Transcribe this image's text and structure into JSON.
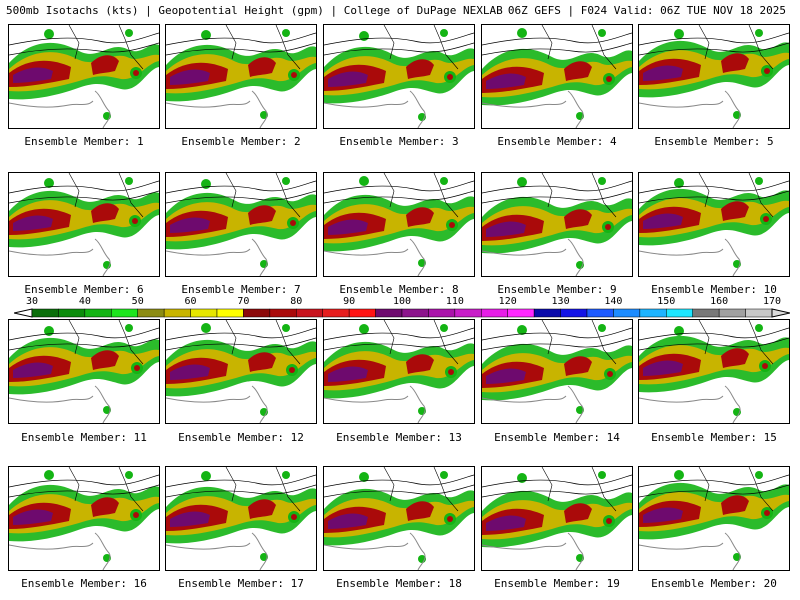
{
  "header": {
    "title": "500mb Isotachs (kts) | Geopotential Height (gpm) | College of DuPage NEXLAB",
    "run_info": "06Z GEFS | F024 Valid: 06Z TUE NOV 18 2025"
  },
  "members": [
    "Ensemble Member: 1",
    "Ensemble Member: 2",
    "Ensemble Member: 3",
    "Ensemble Member: 4",
    "Ensemble Member: 5",
    "Ensemble Member: 6",
    "Ensemble Member: 7",
    "Ensemble Member: 8",
    "Ensemble Member: 9",
    "Ensemble Member: 10",
    "Ensemble Member: 11",
    "Ensemble Member: 12",
    "Ensemble Member: 13",
    "Ensemble Member: 14",
    "Ensemble Member: 15",
    "Ensemble Member: 16",
    "Ensemble Member: 17",
    "Ensemble Member: 18",
    "Ensemble Member: 19",
    "Ensemble Member: 20"
  ],
  "colorbar": {
    "labels": [
      "30",
      "40",
      "50",
      "60",
      "70",
      "80",
      "90",
      "100",
      "110",
      "120",
      "130",
      "140",
      "150",
      "160",
      "170"
    ],
    "colors": [
      "#0a6e0a",
      "#0c8c0c",
      "#14b414",
      "#1ee61e",
      "#8c8c14",
      "#c8b400",
      "#e6e600",
      "#ffff00",
      "#8c0a0a",
      "#aa0a0a",
      "#c8141e",
      "#e61e1e",
      "#ff1414",
      "#6e0a6e",
      "#8c148c",
      "#aa14aa",
      "#c81ec8",
      "#e61ee6",
      "#ff28ff",
      "#0a0aaa",
      "#1414e6",
      "#1e5aff",
      "#1e8cff",
      "#1eb4ff",
      "#1ee6ff",
      "#787878",
      "#a0a0a0",
      "#c8c8c8"
    ]
  }
}
